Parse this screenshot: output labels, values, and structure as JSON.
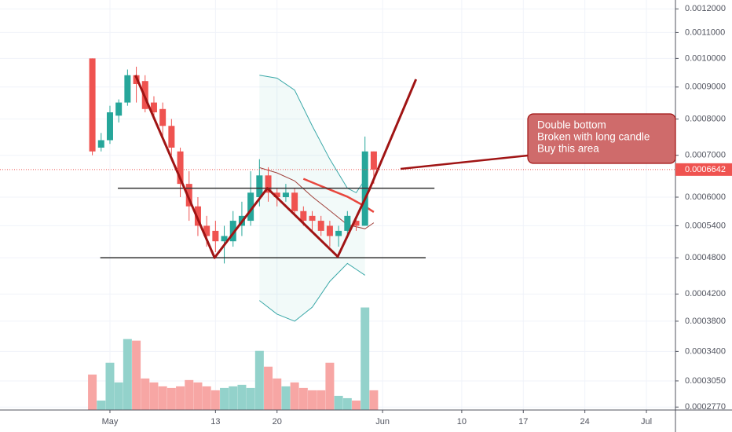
{
  "chart_data": {
    "type": "candlestick",
    "x": [
      -1,
      0,
      1,
      2,
      3,
      4,
      5,
      6,
      7,
      8,
      9,
      10,
      11,
      12,
      13,
      14,
      15,
      16,
      17,
      18,
      19,
      20,
      21,
      22,
      23,
      24,
      25,
      26,
      27,
      28,
      29,
      30,
      31
    ],
    "open": [
      0.001,
      0.00072,
      0.00074,
      0.00081,
      0.00085,
      0.00094,
      0.00092,
      0.00085,
      0.00083,
      0.00078,
      0.00071,
      0.00063,
      0.00058,
      0.00054,
      0.00053,
      0.00051,
      0.00051,
      0.00054,
      0.00055,
      0.0006,
      0.00065,
      0.00061,
      0.0006,
      0.00061,
      0.00057,
      0.00056,
      0.00055,
      0.00054,
      0.00052,
      0.00053,
      0.00055,
      0.00054,
      0.00071
    ],
    "high": [
      0.001,
      0.00076,
      0.00084,
      0.00086,
      0.00096,
      0.00097,
      0.00094,
      0.00087,
      0.00085,
      0.0008,
      0.00072,
      0.00066,
      0.0006,
      0.00056,
      0.00055,
      0.00054,
      0.00057,
      0.00059,
      0.00066,
      0.00069,
      0.00067,
      0.00062,
      0.00063,
      0.00062,
      0.00058,
      0.00057,
      0.00056,
      0.00055,
      0.00054,
      0.00057,
      0.00056,
      0.00075,
      0.00071
    ],
    "low": [
      0.0007,
      0.00071,
      0.00073,
      0.00079,
      0.00084,
      0.00085,
      0.00082,
      0.0008,
      0.00075,
      0.0007,
      0.0006,
      0.00055,
      0.00052,
      0.0005,
      0.00049,
      0.00047,
      0.0005,
      0.00052,
      0.00054,
      0.00058,
      0.00059,
      0.00058,
      0.00059,
      0.00056,
      0.00054,
      0.00053,
      0.00052,
      0.0005,
      0.0005,
      0.00052,
      0.00053,
      0.00054,
      0.00063
    ],
    "close": [
      0.00071,
      0.00074,
      0.00082,
      0.00085,
      0.00094,
      0.00091,
      0.00083,
      0.00082,
      0.00078,
      0.00072,
      0.00063,
      0.00058,
      0.00054,
      0.00052,
      0.00051,
      0.00052,
      0.00055,
      0.00056,
      0.00061,
      0.00065,
      0.00061,
      0.0006,
      0.00061,
      0.00057,
      0.00055,
      0.00055,
      0.00053,
      0.00052,
      0.00053,
      0.00056,
      0.00054,
      0.00071,
      0.0006642
    ],
    "volume": [
      45,
      12,
      60,
      35,
      90,
      88,
      40,
      35,
      30,
      28,
      30,
      38,
      35,
      30,
      25,
      28,
      30,
      32,
      28,
      75,
      55,
      40,
      30,
      35,
      28,
      25,
      25,
      60,
      18,
      15,
      12,
      130,
      25
    ],
    "vlim": [
      0,
      520
    ],
    "up_color": "#26a69a",
    "down_color": "#ef5350",
    "volume_up_color": "#93d2cb",
    "volume_down_color": "#f7a6a4",
    "xlim": [
      -11.5,
      65.3
    ],
    "xticks": [
      {
        "value": 1,
        "label": "May"
      },
      13,
      20,
      {
        "value": 32,
        "label": "Jun"
      },
      {
        "value": 41,
        "label": "10"
      },
      {
        "value": 48,
        "label": "17"
      },
      {
        "value": 55,
        "label": "24"
      },
      {
        "value": 62,
        "label": "Jul"
      }
    ],
    "ylim": [
      0.000274,
      0.00124
    ],
    "log_scale": true,
    "grid": true,
    "yticks": [
      {
        "value": 0.0012,
        "label": "0.0012000"
      },
      {
        "value": 0.0011,
        "label": "0.0011000"
      },
      {
        "value": 0.001,
        "label": "0.0010000"
      },
      {
        "value": 0.0009,
        "label": "0.0009000"
      },
      {
        "value": 0.0008,
        "label": "0.0008000"
      },
      {
        "value": 0.0007,
        "label": "0.0007000"
      },
      {
        "value": 0.0006,
        "label": "0.0006000"
      },
      {
        "value": 0.00054,
        "label": "0.0005400"
      },
      {
        "value": 0.00048,
        "label": "0.0004800"
      },
      {
        "value": 0.00042,
        "label": "0.0004200"
      },
      {
        "value": 0.00038,
        "label": "0.0003800"
      },
      {
        "value": 0.00034,
        "label": "0.0003400"
      },
      {
        "value": 0.000305,
        "label": "0.0003050"
      },
      {
        "value": 0.000277,
        "label": "0.0002770"
      }
    ],
    "last_price": 0.0006642,
    "last_price_color": "#ef5350",
    "bands": {
      "color": "#3aa8a8",
      "fill": "rgba(38,166,154,0.06)",
      "x": [
        18,
        20,
        22,
        24,
        26,
        28,
        29,
        30
      ],
      "upper": [
        0.00094,
        0.00093,
        0.00089,
        0.00078,
        0.00069,
        0.00062,
        0.00061,
        0.00064
      ],
      "lower": [
        0.00041,
        0.00039,
        0.00038,
        0.0004,
        0.00044,
        0.00047,
        0.00046,
        0.00045
      ]
    },
    "overlays": [
      {
        "color": "#a0413b",
        "width": 1,
        "x": [
          18,
          20,
          22,
          24,
          26,
          28,
          30,
          31
        ],
        "values": [
          0.000669,
          0.000656,
          0.000637,
          0.000601,
          0.000571,
          0.000542,
          0.000534,
          0.000546
        ]
      },
      {
        "color": "#e8473e",
        "width": 2.5,
        "x": [
          23,
          25,
          28,
          30,
          31
        ],
        "values": [
          0.000642,
          0.000625,
          0.000601,
          0.00058,
          0.000568
        ]
      }
    ],
    "levels": [
      {
        "value": 0.00062,
        "x": [
          1.9,
          37.9
        ]
      },
      {
        "value": 0.00048,
        "x": [
          -0.1,
          36.9
        ]
      }
    ],
    "trendline": {
      "color": "#a01414",
      "x": [
        3.9,
        12.9,
        18.9,
        26.9,
        30.5,
        35.8
      ],
      "values": [
        0.00094,
        0.00048,
        0.00062,
        0.000482,
        0.000617,
        0.000926
      ]
    },
    "annotation": {
      "lines": [
        "Double bottom",
        "Broken with long candle",
        "Buy this area"
      ]
    }
  }
}
